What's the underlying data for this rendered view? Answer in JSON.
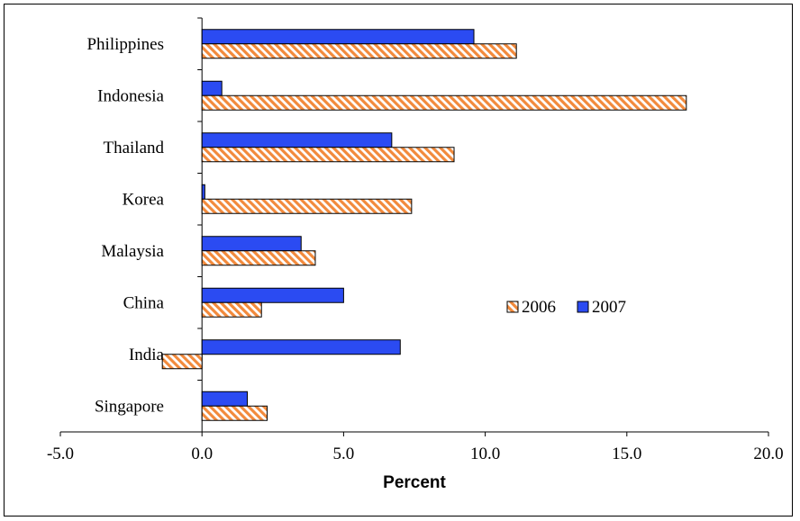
{
  "chart_data": {
    "type": "bar",
    "orientation": "horizontal",
    "categories": [
      "Philippines",
      "Indonesia",
      "Thailand",
      "Korea",
      "Malaysia",
      "China",
      "India",
      "Singapore"
    ],
    "series": [
      {
        "name": "2006",
        "values": [
          11.1,
          17.1,
          8.9,
          7.4,
          4.0,
          2.1,
          -1.4,
          2.3
        ],
        "color": "#F28A3C",
        "pattern": "diagonal-hatch"
      },
      {
        "name": "2007",
        "values": [
          9.6,
          0.7,
          6.7,
          0.1,
          3.5,
          5.0,
          7.0,
          1.6
        ],
        "color": "#2B4BF2",
        "pattern": "solid"
      }
    ],
    "xlim": [
      -5.0,
      20.0
    ],
    "xticks": [
      "-5.0",
      "0.0",
      "5.0",
      "10.0",
      "15.0",
      "20.0"
    ],
    "xlabel": "Percent",
    "ylabel": "",
    "title": "",
    "grid": false,
    "legend_position": "center-right"
  }
}
